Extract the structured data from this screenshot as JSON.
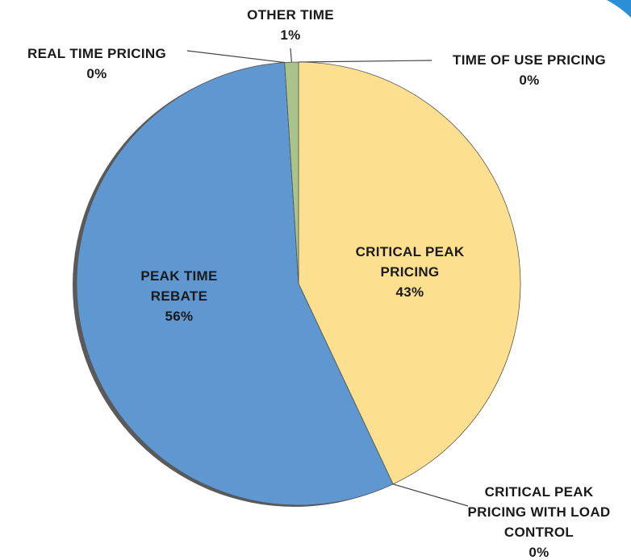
{
  "chart_data": {
    "type": "pie",
    "categories": [
      "TIME OF USE PRICING",
      "CRITICAL PEAK PRICING",
      "CRITICAL PEAK PRICING WITH LOAD CONTROL",
      "PEAK TIME REBATE",
      "REAL TIME PRICING",
      "OTHER TIME"
    ],
    "values": [
      0,
      43,
      0,
      56,
      0,
      1
    ],
    "value_labels": [
      "0%",
      "43%",
      "0%",
      "56%",
      "0%",
      "1%"
    ],
    "colors": [
      "#c9a84a",
      "#fde08f",
      "#e7c25a",
      "#5f97d0",
      "#6a6a6a",
      "#a9c38a"
    ]
  }
}
